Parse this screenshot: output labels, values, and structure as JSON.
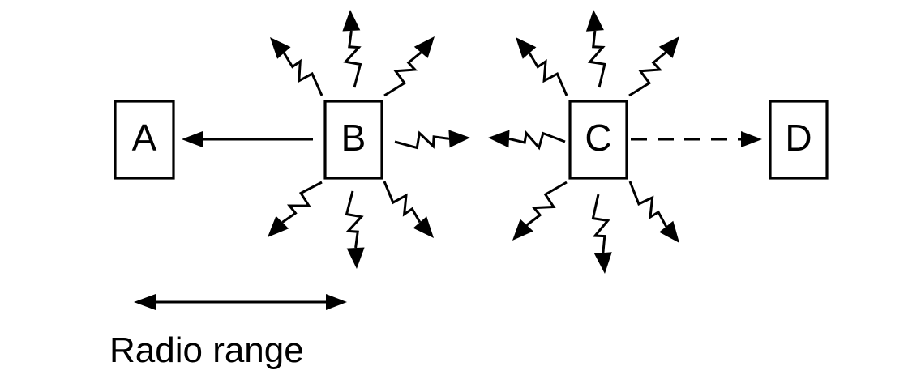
{
  "nodes": [
    {
      "id": "A",
      "label": "A"
    },
    {
      "id": "B",
      "label": "B"
    },
    {
      "id": "C",
      "label": "C"
    },
    {
      "id": "D",
      "label": "D"
    }
  ],
  "caption": "Radio range",
  "colors": {
    "ink": "#000000",
    "background": "#ffffff"
  }
}
